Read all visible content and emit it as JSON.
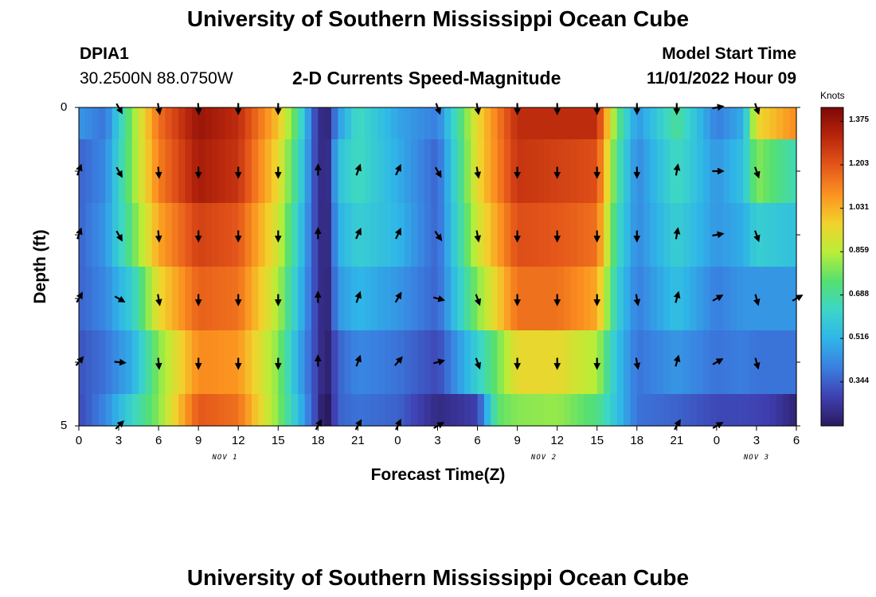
{
  "header": {
    "title": "University of Southern Mississippi Ocean Cube",
    "station": "DPIA1",
    "coords": "30.2500N  88.0750W",
    "chart_title": "2-D Currents Speed-Magnitude",
    "start_label": "Model Start Time",
    "start_value": "11/01/2022 Hour 09"
  },
  "footer": {
    "title": "University of Southern Mississippi Ocean Cube"
  },
  "colors": {
    "ramp": [
      "#2a1a5e",
      "#3f3fb0",
      "#3a7ee0",
      "#2fb5e8",
      "#3cd6c8",
      "#55e070",
      "#b8ee38",
      "#f2d22c",
      "#fb9220",
      "#e4561a",
      "#b8260c",
      "#7e0806"
    ]
  },
  "chart_data": {
    "type": "heatmap",
    "title": "2-D Currents Speed-Magnitude",
    "xlabel": "Forecast Time(Z)",
    "ylabel": "Depth (ft)",
    "y_tick_labels": [
      "0",
      "5"
    ],
    "ylim": [
      0,
      5
    ],
    "xlim": [
      0,
      54
    ],
    "x_tick_labels": [
      "0",
      "3",
      "6",
      "9",
      "12",
      "15",
      "18",
      "21",
      "0",
      "3",
      "6",
      "9",
      "12",
      "15",
      "18",
      "21",
      "0",
      "3",
      "6"
    ],
    "x_date_labels": [
      {
        "label": "NOV 1",
        "hour": 11
      },
      {
        "label": "NOV 2",
        "hour": 35
      },
      {
        "label": "NOV 3",
        "hour": 51
      }
    ],
    "colorbar": {
      "units": "Knots",
      "ticks": [
        "1.375",
        "1.203",
        "1.031",
        "0.859",
        "0.688",
        "0.516",
        "0.344"
      ],
      "range": [
        0.17,
        1.43
      ]
    },
    "depth_levels": [
      0,
      1,
      2,
      3,
      4,
      5
    ],
    "speed_profiles": [
      {
        "level": 0,
        "knots": [
          [
            0,
            0.45
          ],
          [
            2,
            0.38
          ],
          [
            4,
            0.8
          ],
          [
            6,
            1.15
          ],
          [
            9,
            1.38
          ],
          [
            12,
            1.3
          ],
          [
            15,
            1.0
          ],
          [
            16.5,
            0.7
          ],
          [
            17.8,
            0.3
          ],
          [
            18.6,
            0.17
          ],
          [
            19.5,
            0.45
          ],
          [
            21,
            0.65
          ],
          [
            24,
            0.48
          ],
          [
            27,
            0.4
          ],
          [
            30,
            0.95
          ],
          [
            33,
            1.3
          ],
          [
            36,
            1.3
          ],
          [
            39,
            1.3
          ],
          [
            40.5,
            0.75
          ],
          [
            42,
            0.45
          ],
          [
            45,
            0.7
          ],
          [
            48,
            0.4
          ],
          [
            50,
            0.5
          ],
          [
            51,
            0.95
          ],
          [
            54,
            1.1
          ]
        ]
      },
      {
        "level": 1,
        "knots": [
          [
            0,
            0.35
          ],
          [
            2,
            0.42
          ],
          [
            4,
            0.8
          ],
          [
            6,
            1.12
          ],
          [
            9,
            1.35
          ],
          [
            12,
            1.28
          ],
          [
            15,
            0.95
          ],
          [
            16.5,
            0.65
          ],
          [
            17.8,
            0.3
          ],
          [
            18.6,
            0.17
          ],
          [
            19.5,
            0.55
          ],
          [
            21,
            0.65
          ],
          [
            24,
            0.5
          ],
          [
            27,
            0.35
          ],
          [
            30,
            0.95
          ],
          [
            33,
            1.28
          ],
          [
            36,
            1.25
          ],
          [
            39,
            1.22
          ],
          [
            40.5,
            0.7
          ],
          [
            42,
            0.42
          ],
          [
            45,
            0.65
          ],
          [
            48,
            0.45
          ],
          [
            50,
            0.55
          ],
          [
            51,
            0.8
          ],
          [
            54,
            0.65
          ]
        ]
      },
      {
        "level": 2,
        "knots": [
          [
            0,
            0.35
          ],
          [
            2,
            0.45
          ],
          [
            4,
            0.75
          ],
          [
            6,
            1.05
          ],
          [
            9,
            1.25
          ],
          [
            12,
            1.2
          ],
          [
            15,
            0.9
          ],
          [
            16.5,
            0.6
          ],
          [
            17.8,
            0.3
          ],
          [
            18.6,
            0.17
          ],
          [
            19.5,
            0.5
          ],
          [
            21,
            0.6
          ],
          [
            24,
            0.52
          ],
          [
            27,
            0.35
          ],
          [
            30,
            0.9
          ],
          [
            33,
            1.22
          ],
          [
            36,
            1.2
          ],
          [
            39,
            1.15
          ],
          [
            40.5,
            0.65
          ],
          [
            42,
            0.42
          ],
          [
            45,
            0.6
          ],
          [
            48,
            0.45
          ],
          [
            50,
            0.5
          ],
          [
            51,
            0.6
          ],
          [
            54,
            0.55
          ]
        ]
      },
      {
        "level": 3,
        "knots": [
          [
            0,
            0.35
          ],
          [
            2,
            0.42
          ],
          [
            4,
            0.6
          ],
          [
            6,
            0.95
          ],
          [
            9,
            1.18
          ],
          [
            12,
            1.15
          ],
          [
            15,
            0.85
          ],
          [
            16.5,
            0.55
          ],
          [
            17.8,
            0.3
          ],
          [
            18.6,
            0.17
          ],
          [
            19.5,
            0.45
          ],
          [
            21,
            0.52
          ],
          [
            24,
            0.45
          ],
          [
            27,
            0.35
          ],
          [
            30,
            0.8
          ],
          [
            33,
            1.15
          ],
          [
            36,
            1.15
          ],
          [
            39,
            1.05
          ],
          [
            40.5,
            0.6
          ],
          [
            42,
            0.4
          ],
          [
            45,
            0.55
          ],
          [
            48,
            0.4
          ],
          [
            50,
            0.45
          ],
          [
            51,
            0.45
          ],
          [
            54,
            0.45
          ]
        ]
      },
      {
        "level": 4,
        "knots": [
          [
            0,
            0.32
          ],
          [
            2,
            0.38
          ],
          [
            4,
            0.5
          ],
          [
            6,
            0.8
          ],
          [
            9,
            1.1
          ],
          [
            12,
            1.08
          ],
          [
            15,
            0.8
          ],
          [
            16.5,
            0.5
          ],
          [
            17.8,
            0.3
          ],
          [
            18.6,
            0.17
          ],
          [
            19.5,
            0.35
          ],
          [
            21,
            0.42
          ],
          [
            24,
            0.38
          ],
          [
            27,
            0.3
          ],
          [
            30,
            0.6
          ],
          [
            33,
            0.95
          ],
          [
            36,
            0.95
          ],
          [
            39,
            0.85
          ],
          [
            40.5,
            0.55
          ],
          [
            42,
            0.38
          ],
          [
            45,
            0.45
          ],
          [
            48,
            0.38
          ],
          [
            50,
            0.4
          ],
          [
            51,
            0.38
          ],
          [
            54,
            0.38
          ]
        ]
      },
      {
        "level": 5,
        "knots": [
          [
            0,
            0.3
          ],
          [
            2,
            0.42
          ],
          [
            4,
            0.62
          ],
          [
            6,
            0.8
          ],
          [
            9,
            1.2
          ],
          [
            12,
            1.15
          ],
          [
            15,
            0.8
          ],
          [
            16.5,
            0.55
          ],
          [
            17.8,
            0.3
          ],
          [
            18.6,
            0.12
          ],
          [
            19.5,
            0.35
          ],
          [
            21,
            0.38
          ],
          [
            24,
            0.35
          ],
          [
            27,
            0.22
          ],
          [
            30,
            0.28
          ],
          [
            31.5,
            0.75
          ],
          [
            33,
            0.8
          ],
          [
            36,
            0.82
          ],
          [
            39,
            0.72
          ],
          [
            40.5,
            0.55
          ],
          [
            42,
            0.38
          ],
          [
            45,
            0.35
          ],
          [
            48,
            0.3
          ],
          [
            50,
            0.3
          ],
          [
            52,
            0.28
          ],
          [
            54,
            0.2
          ]
        ]
      }
    ],
    "arrow_hours": [
      0,
      3,
      6,
      9,
      12,
      15,
      18,
      21,
      24,
      27,
      30,
      33,
      36,
      39,
      42,
      45,
      48,
      51,
      54
    ],
    "arrow_angles_deg": [
      [
        null,
        150,
        170,
        175,
        180,
        180,
        null,
        null,
        null,
        160,
        170,
        180,
        180,
        180,
        180,
        180,
        80,
        160,
        null
      ],
      [
        20,
        150,
        175,
        180,
        180,
        180,
        0,
        20,
        25,
        150,
        170,
        180,
        180,
        180,
        180,
        10,
        90,
        160,
        null
      ],
      [
        20,
        150,
        175,
        180,
        180,
        180,
        0,
        25,
        25,
        145,
        170,
        180,
        180,
        180,
        180,
        10,
        80,
        160,
        null
      ],
      [
        30,
        120,
        170,
        180,
        180,
        180,
        0,
        20,
        30,
        105,
        160,
        180,
        180,
        180,
        170,
        15,
        60,
        165,
        60
      ],
      [
        40,
        95,
        175,
        180,
        180,
        180,
        0,
        20,
        40,
        75,
        160,
        180,
        180,
        180,
        170,
        15,
        60,
        165,
        null
      ],
      [
        null,
        45,
        null,
        null,
        null,
        null,
        30,
        30,
        25,
        60,
        null,
        null,
        null,
        null,
        null,
        30,
        60,
        null,
        null
      ]
    ]
  }
}
